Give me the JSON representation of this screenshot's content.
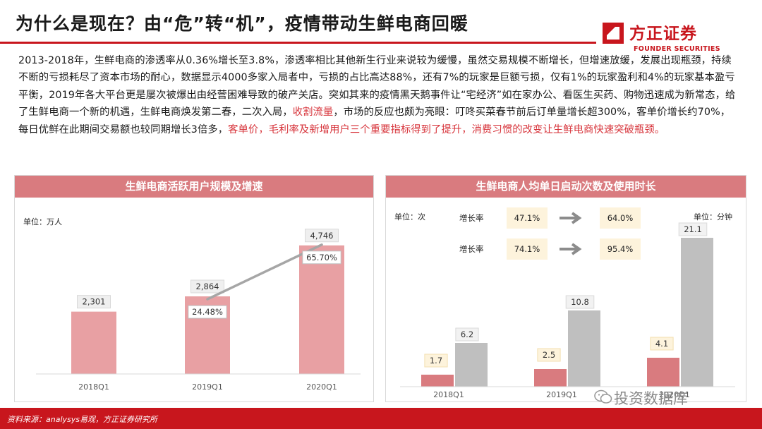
{
  "header": {
    "title": "为什么是现在？由“危”转“机”，疫情带动生鲜电商回暖",
    "logo_cn": "方正证券",
    "logo_en": "FOUNDER SECURITIES",
    "brand_color": "#c8161d"
  },
  "body": {
    "p1": "2013-2018年，生鲜电商的渗透率从0.36%增长至3.8%，渗透率相比其他新生行业来说较为缓慢，虽然交易规模不断增长，但增速放缓，发展出现瓶颈，持续不断的亏损耗尽了资本市场的耐心，数据显示4000多家入局者中，亏损的占比高达88%，还有7%的玩家是巨额亏损，仅有1%的玩家盈利和4%的玩家基本盈亏平衡，2019年各大平台更是屡次被爆出由经营困难导致的破产关店。突如其来的疫情黑天鹅事件让“宅经济”如在家办公、看医生买药、购物迅速成为新常态，给了生鲜电商一个新的机遇，生鲜电商焕发第二春，二次入局，",
    "hl1": "收割流量",
    "p2": "，市场的反应也颇为亮眼：叮咚买菜春节前后订单量增长超300%，客单价增长约70%，每日优鲜在此期间交易额也较同期增长3倍多，",
    "hl2": "客单价，毛利率及新增用户三个重要指标得到了提升，消费习惯的改变让生鲜电商快速突破瓶颈。"
  },
  "chart_data": [
    {
      "type": "bar",
      "title": "生鲜电商活跃用户规模及增速",
      "unit": "单位：万人",
      "categories": [
        "2018Q1",
        "2019Q1",
        "2020Q1"
      ],
      "series": [
        {
          "values": [
            2301,
            2864,
            4746
          ],
          "labels": [
            "2,301",
            "2,864",
            "4,746"
          ],
          "color": "#e8a0a3"
        },
        {
          "type": "line",
          "values": [
            null,
            24.48,
            65.7
          ],
          "labels": [
            "",
            "24.48%",
            "65.70%"
          ],
          "color": "#a6a6a6"
        }
      ],
      "ylim": [
        0,
        5000
      ]
    },
    {
      "type": "bar",
      "title": "生鲜电商人均单日启动次数及使用时长",
      "unit_left": "单位：次",
      "unit_right": "单位：分钟",
      "categories": [
        "2018Q1",
        "2019Q1",
        "2020Q1"
      ],
      "series": [
        {
          "values": [
            1.7,
            2.5,
            4.1
          ],
          "labels": [
            "1.7",
            "2.5",
            "4.1"
          ],
          "color": "#d97b7f"
        },
        {
          "values": [
            6.2,
            10.8,
            21.1
          ],
          "labels": [
            "6.2",
            "10.8",
            "21.1"
          ],
          "color": "#bfbfbf"
        }
      ],
      "growth": [
        {
          "label": "增长率",
          "from": "47.1%",
          "to": "64.0%"
        },
        {
          "label": "增长率",
          "from": "74.1%",
          "to": "95.4%"
        }
      ],
      "ylim": [
        0,
        22
      ]
    }
  ],
  "footer": {
    "source": "资料来源：analysys易观，方正证券研究所",
    "watermark": "投资数据库"
  }
}
